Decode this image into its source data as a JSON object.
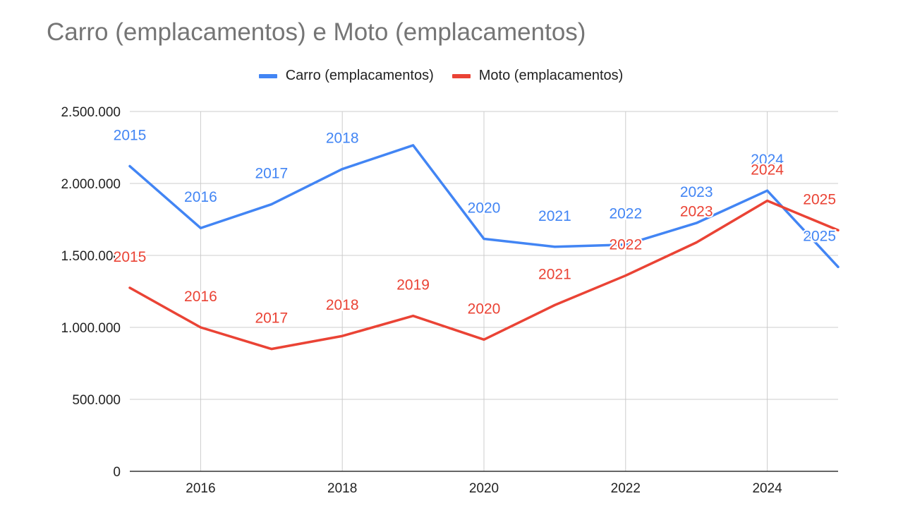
{
  "chart_data": {
    "type": "line",
    "title": "Carro (emplacamentos) e Moto (emplacamentos)",
    "xlabel": "",
    "ylabel": "",
    "x": [
      2015,
      2016,
      2017,
      2018,
      2019,
      2020,
      2021,
      2022,
      2023,
      2024,
      2025
    ],
    "xlim": [
      2015,
      2025
    ],
    "ylim": [
      0,
      2500000
    ],
    "x_ticks": [
      2016,
      2018,
      2020,
      2022,
      2024
    ],
    "x_tick_labels": [
      "2016",
      "2018",
      "2020",
      "2022",
      "2024"
    ],
    "y_ticks": [
      0,
      500000,
      1000000,
      1500000,
      2000000,
      2500000
    ],
    "y_tick_labels": [
      "0",
      "500.000",
      "1.000.000",
      "1.500.000",
      "2.000.000",
      "2.500.000"
    ],
    "grid": true,
    "legend_position": "top",
    "series": [
      {
        "name": "Carro (emplacamentos)",
        "color": "#4285f4",
        "values": [
          2120000,
          1690000,
          1855000,
          2100000,
          2265000,
          1615000,
          1560000,
          1575000,
          1725000,
          1950000,
          1420000
        ],
        "point_labels": [
          "2015",
          "2016",
          "2017",
          "2018",
          "",
          "2020",
          "2021",
          "2022",
          "2023",
          "2024",
          "2025"
        ]
      },
      {
        "name": "Moto (emplacamentos)",
        "color": "#ea4335",
        "values": [
          1275000,
          1000000,
          850000,
          940000,
          1080000,
          915000,
          1155000,
          1360000,
          1590000,
          1880000,
          1675000
        ],
        "point_labels": [
          "2015",
          "2016",
          "2017",
          "2018",
          "2019",
          "2020",
          "2021",
          "2022",
          "2023",
          "2024",
          "2025"
        ]
      }
    ]
  }
}
